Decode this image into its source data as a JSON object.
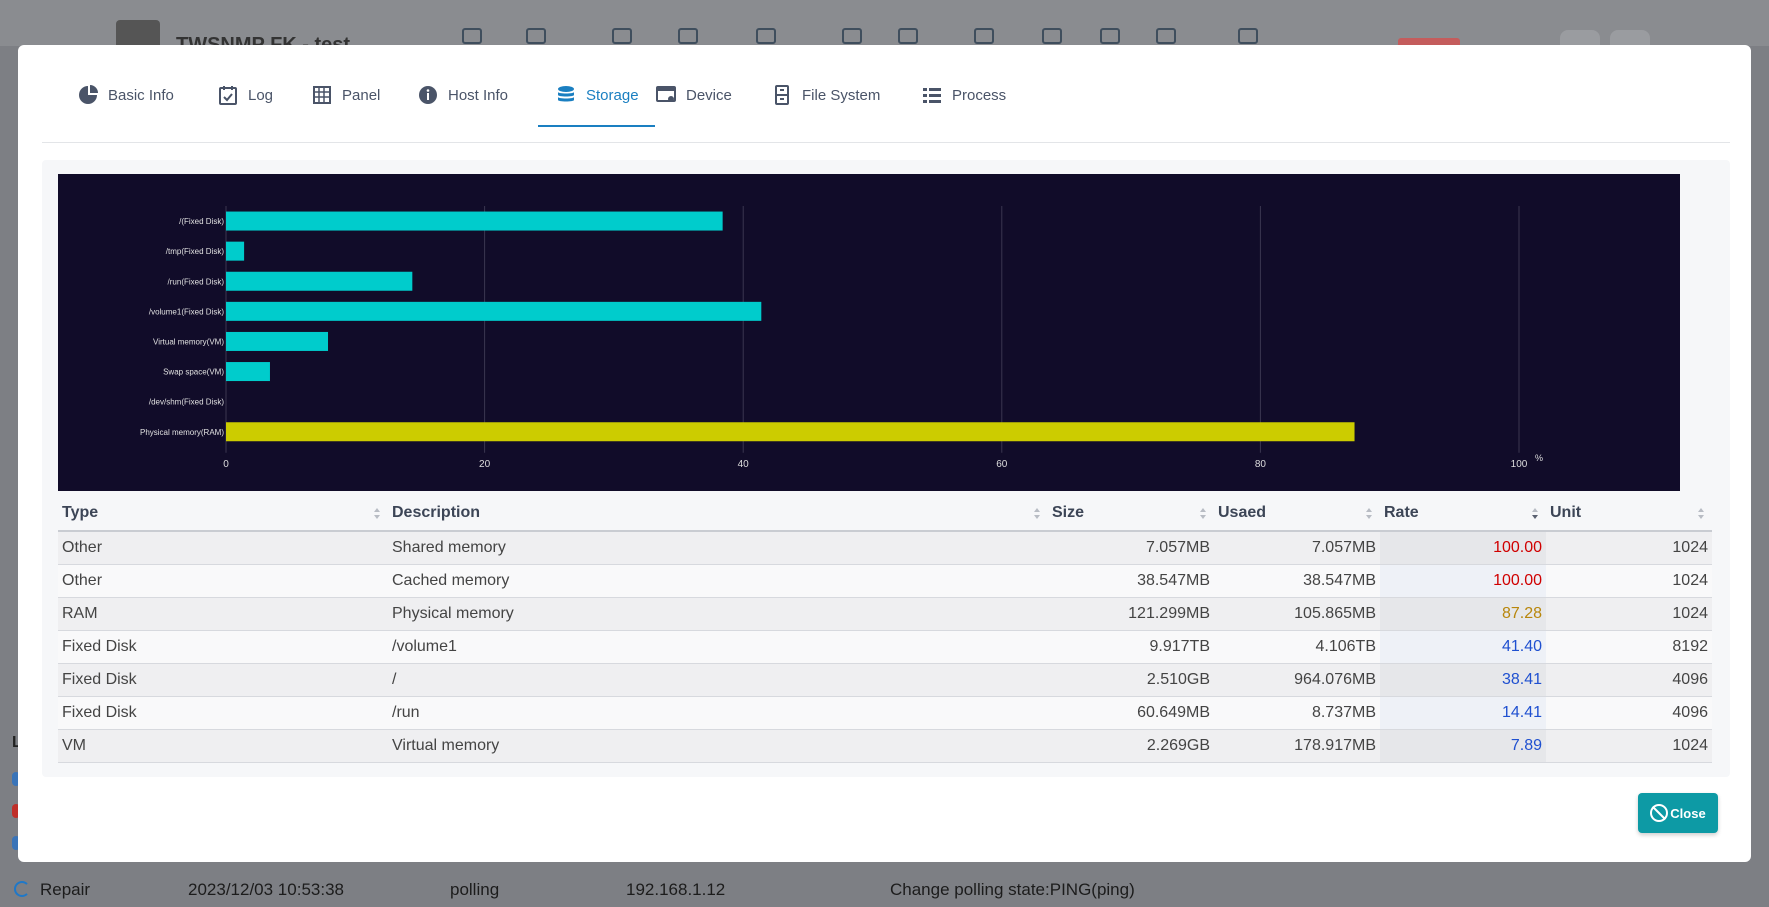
{
  "background": {
    "app_title": "TWSNMP FK - test",
    "bottom_row": {
      "action": "Repair",
      "time": "2023/12/03 10:53:38",
      "type": "polling",
      "ip": "192.168.1.12",
      "message": "Change polling state:PING(ping)"
    },
    "left_letter": "L"
  },
  "tabs": [
    {
      "label": "Basic Info",
      "icon": "pie-chart-icon"
    },
    {
      "label": "Log",
      "icon": "calendar-check-icon"
    },
    {
      "label": "Panel",
      "icon": "grid-icon"
    },
    {
      "label": "Host Info",
      "icon": "info-icon"
    },
    {
      "label": "Storage",
      "icon": "database-icon",
      "active": true
    },
    {
      "label": "Device",
      "icon": "device-icon"
    },
    {
      "label": "File System",
      "icon": "file-cabinet-icon"
    },
    {
      "label": "Process",
      "icon": "list-icon"
    }
  ],
  "chart_data": {
    "type": "bar",
    "orientation": "horizontal",
    "categories": [
      "/(Fixed Disk)",
      "/tmp(Fixed Disk)",
      "/run(Fixed Disk)",
      "/volume1(Fixed Disk)",
      "Virtual memory(VM)",
      "Swap space(VM)",
      "/dev/shm(Fixed Disk)",
      "Physical memory(RAM)"
    ],
    "values": [
      38.41,
      1.4,
      14.41,
      41.4,
      7.89,
      3.4,
      0,
      87.28
    ],
    "colors": [
      "#00cccc",
      "#00cccc",
      "#00cccc",
      "#00cccc",
      "#00cccc",
      "#00cccc",
      "#00cccc",
      "#cccc00"
    ],
    "xlim": [
      0,
      100
    ],
    "xticks": [
      0,
      20,
      40,
      60,
      80,
      100
    ],
    "xlabel": "%",
    "grid": true,
    "background": "#110c29"
  },
  "table": {
    "columns": [
      "Type",
      "Description",
      "Size",
      "Usaed",
      "Rate",
      "Unit"
    ],
    "rows": [
      {
        "type": "Other",
        "desc": "Shared memory",
        "size": "7.057MB",
        "used": "7.057MB",
        "rate": "100.00",
        "unit": "1024",
        "rate_color": "#d00000"
      },
      {
        "type": "Other",
        "desc": "Cached memory",
        "size": "38.547MB",
        "used": "38.547MB",
        "rate": "100.00",
        "unit": "1024",
        "rate_color": "#d00000"
      },
      {
        "type": "RAM",
        "desc": "Physical memory",
        "size": "121.299MB",
        "used": "105.865MB",
        "rate": "87.28",
        "unit": "1024",
        "rate_color": "#b8860b"
      },
      {
        "type": "Fixed Disk",
        "desc": "/volume1",
        "size": "9.917TB",
        "used": "4.106TB",
        "rate": "41.40",
        "unit": "8192",
        "rate_color": "#1f50d0"
      },
      {
        "type": "Fixed Disk",
        "desc": "/",
        "size": "2.510GB",
        "used": "964.076MB",
        "rate": "38.41",
        "unit": "4096",
        "rate_color": "#1f50d0"
      },
      {
        "type": "Fixed Disk",
        "desc": "/run",
        "size": "60.649MB",
        "used": "8.737MB",
        "rate": "14.41",
        "unit": "4096",
        "rate_color": "#1f50d0"
      },
      {
        "type": "VM",
        "desc": "Virtual memory",
        "size": "2.269GB",
        "used": "178.917MB",
        "rate": "7.89",
        "unit": "1024",
        "rate_color": "#1f50d0"
      }
    ]
  },
  "close_label": "Close"
}
